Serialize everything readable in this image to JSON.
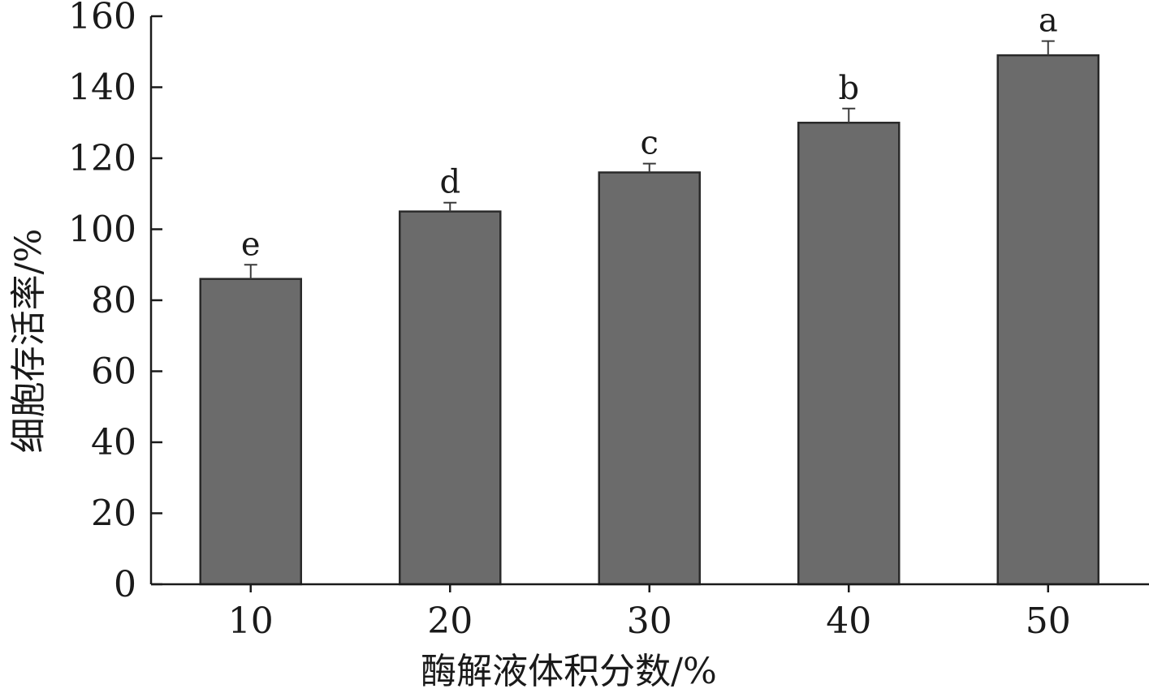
{
  "chart_data": {
    "type": "bar",
    "categories": [
      "10",
      "20",
      "30",
      "40",
      "50"
    ],
    "values": [
      86,
      105,
      116,
      130,
      149
    ],
    "errors": [
      4,
      2.5,
      2.5,
      4,
      4
    ],
    "significance_letters": [
      "e",
      "d",
      "c",
      "b",
      "a"
    ],
    "xlabel": "酶解液体积分数/%",
    "ylabel": "细胞存活率/%",
    "ylim": [
      0,
      160
    ],
    "yticks": [
      "0",
      "20",
      "40",
      "60",
      "80",
      "100",
      "120",
      "140",
      "160"
    ],
    "grid": false,
    "bar_color": "#6b6b6b",
    "bar_edge_color": "#2a2a2a"
  }
}
